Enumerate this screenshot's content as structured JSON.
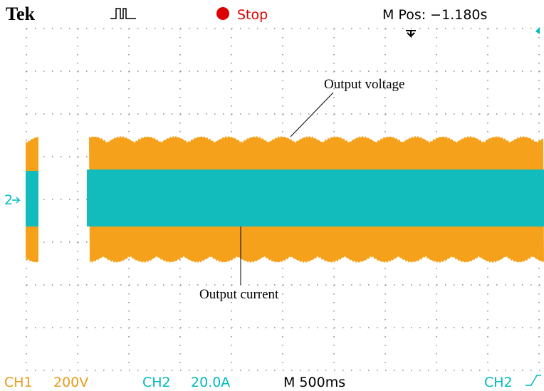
{
  "header": {
    "brand": "Tek",
    "status": "Stop",
    "position": "M Pos: −1.180s"
  },
  "annotations": {
    "voltage": "Output voltage",
    "current": "Output current"
  },
  "channel_marker": "2",
  "footer": {
    "ch1": "CH1",
    "ch1_scale": "200V",
    "ch2": "CH2",
    "ch2_scale": "20.0A",
    "timebase": "M 500ms",
    "trigger_source": "CH2"
  }
}
